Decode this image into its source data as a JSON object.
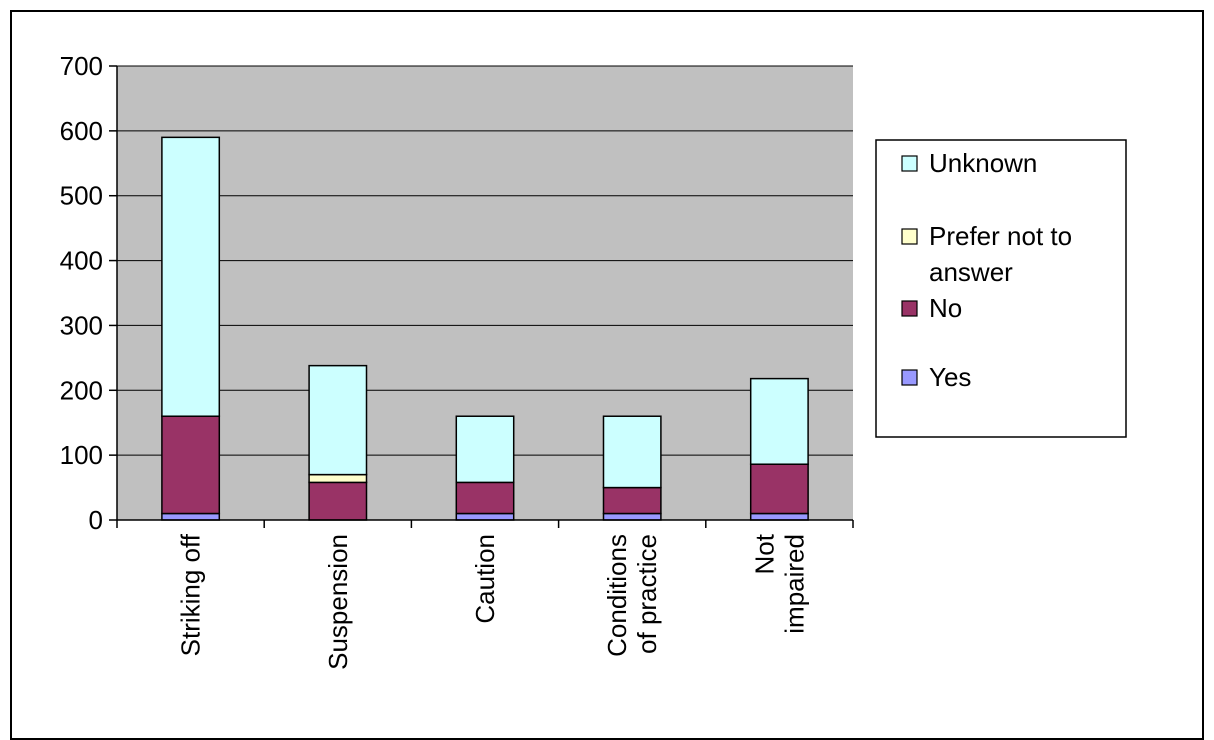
{
  "chart_data": {
    "type": "bar",
    "stacked": true,
    "categories": [
      [
        "Striking off"
      ],
      [
        "Suspension"
      ],
      [
        "Caution"
      ],
      [
        "Conditions",
        "of practice"
      ],
      [
        "Not",
        "impaired"
      ]
    ],
    "series": [
      {
        "name": "Yes",
        "color": "#9999ff",
        "values": [
          10,
          0,
          10,
          10,
          10
        ]
      },
      {
        "name": "No",
        "color": "#993366",
        "values": [
          150,
          58,
          48,
          40,
          76
        ]
      },
      {
        "name": "Prefer not to answer",
        "color": "#ffffcc",
        "values": [
          0,
          12,
          0,
          0,
          0
        ]
      },
      {
        "name": "Unknown",
        "color": "#ccffff",
        "values": [
          430,
          168,
          102,
          110,
          132
        ]
      }
    ],
    "extra_band_color": "#000000",
    "ylim": [
      0,
      700
    ],
    "yticks": [
      0,
      100,
      200,
      300,
      400,
      500,
      600,
      700
    ],
    "plot_background": "#c0c0c0",
    "grid": true,
    "legend": {
      "position": "right",
      "order": [
        "Unknown",
        "Prefer not to answer",
        "No",
        "Yes"
      ],
      "labels": [
        [
          "Unknown"
        ],
        [
          "Prefer not to",
          "answer"
        ],
        [
          "No"
        ],
        [
          "Yes"
        ]
      ]
    }
  }
}
